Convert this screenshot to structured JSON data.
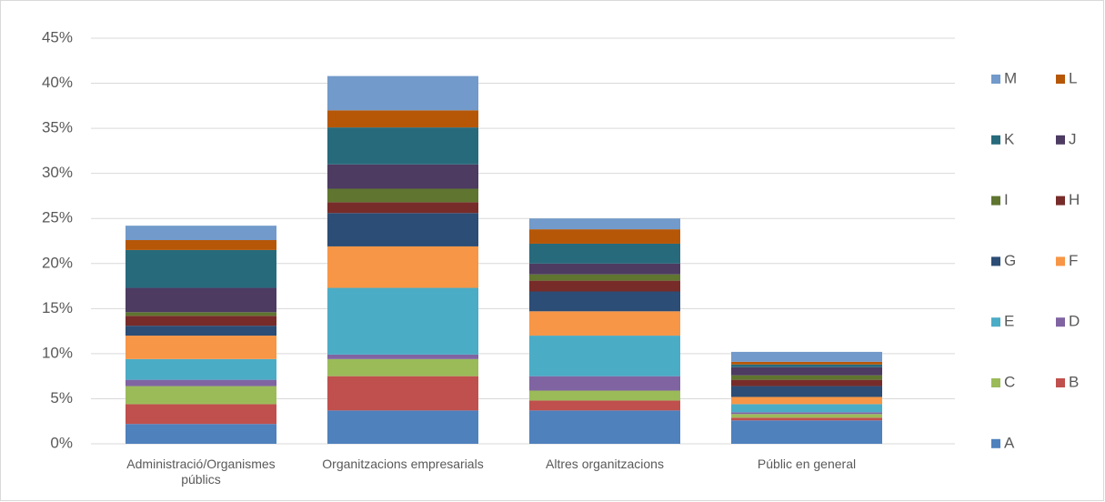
{
  "chart_data": {
    "type": "stacked-bar",
    "categories": [
      "Administració/Organismes públics",
      "Organitzacions empresarials",
      "Altres organitzacions",
      "Públic en general"
    ],
    "series": [
      {
        "name": "A",
        "color": "#4f81bd",
        "values": [
          2.2,
          3.7,
          3.7,
          2.6
        ]
      },
      {
        "name": "B",
        "color": "#c0504d",
        "values": [
          2.2,
          3.8,
          1.1,
          0.3
        ]
      },
      {
        "name": "C",
        "color": "#9bbb59",
        "values": [
          2.0,
          1.9,
          1.1,
          0.4
        ]
      },
      {
        "name": "D",
        "color": "#8064a2",
        "values": [
          0.7,
          0.5,
          1.6,
          0.2
        ]
      },
      {
        "name": "E",
        "color": "#4bacc6",
        "values": [
          2.3,
          7.4,
          4.5,
          0.9
        ]
      },
      {
        "name": "F",
        "color": "#f79646",
        "values": [
          2.6,
          4.6,
          2.7,
          0.8
        ]
      },
      {
        "name": "G",
        "color": "#2c4d75",
        "values": [
          1.1,
          3.7,
          2.2,
          1.2
        ]
      },
      {
        "name": "H",
        "color": "#772c2a",
        "values": [
          1.1,
          1.2,
          1.2,
          0.7
        ]
      },
      {
        "name": "I",
        "color": "#5f7530",
        "values": [
          0.4,
          1.5,
          0.7,
          0.5
        ]
      },
      {
        "name": "J",
        "color": "#4d3b62",
        "values": [
          2.7,
          2.7,
          1.2,
          0.9
        ]
      },
      {
        "name": "K",
        "color": "#276a7c",
        "values": [
          4.2,
          4.1,
          2.2,
          0.3
        ]
      },
      {
        "name": "L",
        "color": "#b65708",
        "values": [
          1.1,
          1.9,
          1.6,
          0.3
        ]
      },
      {
        "name": "M",
        "color": "#729aca",
        "values": [
          1.6,
          3.8,
          1.2,
          1.1
        ]
      }
    ],
    "ylim": [
      0,
      45
    ],
    "yticks": [
      {
        "value": 0,
        "label": "0%"
      },
      {
        "value": 5,
        "label": "5%"
      },
      {
        "value": 10,
        "label": "10%"
      },
      {
        "value": 15,
        "label": "15%"
      },
      {
        "value": 20,
        "label": "20%"
      },
      {
        "value": 25,
        "label": "25%"
      },
      {
        "value": 30,
        "label": "30%"
      },
      {
        "value": 35,
        "label": "35%"
      },
      {
        "value": 40,
        "label": "40%"
      },
      {
        "value": 45,
        "label": "45%"
      }
    ],
    "grid": true
  }
}
